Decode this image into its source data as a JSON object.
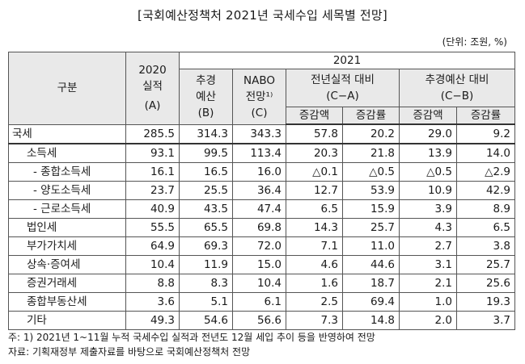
{
  "title": "[국회예산정책처 2021년 국세수입 세목별 전망]",
  "unit": "(단위: 조원, %)",
  "header": {
    "category": "구분",
    "y2020_line1": "2020",
    "y2020_line2": "실적",
    "y2020_code": "(A)",
    "y2021": "2021",
    "supp_line1": "추경",
    "supp_line2": "예산",
    "supp_code": "(B)",
    "nabo_line1": "NABO",
    "nabo_line2": "전망¹⁾",
    "nabo_code": "(C)",
    "vs_actual": "전년실적 대비",
    "vs_actual_code": "(C−A)",
    "vs_budget": "추경예산 대비",
    "vs_budget_code": "(C−B)",
    "inc_amount": "증감액",
    "inc_rate": "증감률"
  },
  "rows": [
    {
      "label": "국세",
      "level": 1,
      "a": "285.5",
      "b": "314.3",
      "c": "343.3",
      "d1": "57.8",
      "r1": "20.2",
      "d2": "29.0",
      "r2": "9.2"
    },
    {
      "label": "소득세",
      "level": 2,
      "a": "93.1",
      "b": "99.5",
      "c": "113.4",
      "d1": "20.3",
      "r1": "21.8",
      "d2": "13.9",
      "r2": "14.0"
    },
    {
      "label": "- 종합소득세",
      "level": 3,
      "a": "16.1",
      "b": "16.5",
      "c": "16.0",
      "d1": "△0.1",
      "r1": "△0.5",
      "d2": "△0.5",
      "r2": "△2.9"
    },
    {
      "label": "- 양도소득세",
      "level": 3,
      "a": "23.7",
      "b": "25.5",
      "c": "36.4",
      "d1": "12.7",
      "r1": "53.9",
      "d2": "10.9",
      "r2": "42.9"
    },
    {
      "label": "- 근로소득세",
      "level": 3,
      "a": "40.9",
      "b": "43.5",
      "c": "47.4",
      "d1": "6.5",
      "r1": "15.9",
      "d2": "3.9",
      "r2": "8.9"
    },
    {
      "label": "법인세",
      "level": 2,
      "a": "55.5",
      "b": "65.5",
      "c": "69.8",
      "d1": "14.3",
      "r1": "25.7",
      "d2": "4.3",
      "r2": "6.5"
    },
    {
      "label": "부가가치세",
      "level": 2,
      "a": "64.9",
      "b": "69.3",
      "c": "72.0",
      "d1": "7.1",
      "r1": "11.0",
      "d2": "2.7",
      "r2": "3.8"
    },
    {
      "label": "상속·증여세",
      "level": 2,
      "a": "10.4",
      "b": "11.9",
      "c": "15.0",
      "d1": "4.6",
      "r1": "44.6",
      "d2": "3.1",
      "r2": "25.7"
    },
    {
      "label": "증권거래세",
      "level": 2,
      "a": "8.8",
      "b": "8.3",
      "c": "10.4",
      "d1": "1.6",
      "r1": "18.7",
      "d2": "2.1",
      "r2": "25.6"
    },
    {
      "label": "종합부동산세",
      "level": 2,
      "a": "3.6",
      "b": "5.1",
      "c": "6.1",
      "d1": "2.5",
      "r1": "69.4",
      "d2": "1.0",
      "r2": "19.3"
    },
    {
      "label": "기타",
      "level": 2,
      "a": "49.3",
      "b": "54.6",
      "c": "56.6",
      "d1": "7.3",
      "r1": "14.8",
      "d2": "2.0",
      "r2": "3.7"
    }
  ],
  "notes": [
    "주: 1) 2021년 1~11월 누적 국세수입 실적과 전년도 12월 세입 추이 등을 반영하여 전망",
    "자료: 기획재정부 제출자료를 바탕으로 국회예산정책처 전망"
  ]
}
